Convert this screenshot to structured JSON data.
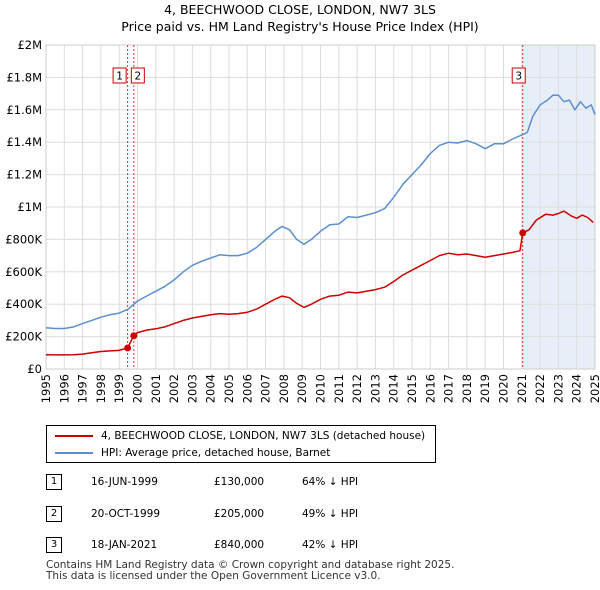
{
  "title": {
    "line1": "4, BEECHWOOD CLOSE, LONDON, NW7 3LS",
    "line2": "Price paid vs. HM Land Registry's House Price Index (HPI)"
  },
  "colors": {
    "property": "#cc0000",
    "hpi": "#5b8fd0",
    "shade": "#e8eef8",
    "grid": "#dddddd",
    "vline": "#cc0000"
  },
  "chart_data": {
    "type": "line",
    "title": "Price paid vs. HM Land Registry's House Price Index (HPI)",
    "xlabel": "",
    "ylabel": "",
    "xlim": [
      1995,
      2025
    ],
    "ylim": [
      0,
      2000000
    ],
    "grid": true,
    "y_ticks": [
      {
        "value": 0,
        "label": "£0"
      },
      {
        "value": 200000,
        "label": "£200K"
      },
      {
        "value": 400000,
        "label": "£400K"
      },
      {
        "value": 600000,
        "label": "£600K"
      },
      {
        "value": 800000,
        "label": "£800K"
      },
      {
        "value": 1000000,
        "label": "£1M"
      },
      {
        "value": 1200000,
        "label": "£1.2M"
      },
      {
        "value": 1400000,
        "label": "£1.4M"
      },
      {
        "value": 1600000,
        "label": "£1.6M"
      },
      {
        "value": 1800000,
        "label": "£1.8M"
      },
      {
        "value": 2000000,
        "label": "£2M"
      }
    ],
    "x_ticks": [
      "1995",
      "1996",
      "1997",
      "1998",
      "1999",
      "2000",
      "2001",
      "2002",
      "2003",
      "2004",
      "2005",
      "2006",
      "2007",
      "2008",
      "2009",
      "2010",
      "2011",
      "2012",
      "2013",
      "2014",
      "2015",
      "2016",
      "2017",
      "2018",
      "2019",
      "2020",
      "2021",
      "2022",
      "2023",
      "2024",
      "2025"
    ],
    "shaded_region": [
      2021.05,
      2025
    ],
    "series": [
      {
        "name": "4, BEECHWOOD CLOSE, LONDON, NW7 3LS (detached house)",
        "color": "#cc0000",
        "points": [
          [
            1995.0,
            88000
          ],
          [
            1995.5,
            87000
          ],
          [
            1996.0,
            87000
          ],
          [
            1996.5,
            88000
          ],
          [
            1997.0,
            92000
          ],
          [
            1997.5,
            100000
          ],
          [
            1998.0,
            108000
          ],
          [
            1998.5,
            112000
          ],
          [
            1999.0,
            115000
          ],
          [
            1999.46,
            130000
          ],
          [
            1999.8,
            205000
          ],
          [
            2000.0,
            225000
          ],
          [
            2000.5,
            240000
          ],
          [
            2001.0,
            248000
          ],
          [
            2001.5,
            260000
          ],
          [
            2002.0,
            280000
          ],
          [
            2002.5,
            300000
          ],
          [
            2003.0,
            315000
          ],
          [
            2003.5,
            325000
          ],
          [
            2004.0,
            335000
          ],
          [
            2004.5,
            342000
          ],
          [
            2005.0,
            338000
          ],
          [
            2005.5,
            342000
          ],
          [
            2006.0,
            350000
          ],
          [
            2006.5,
            370000
          ],
          [
            2007.0,
            400000
          ],
          [
            2007.5,
            430000
          ],
          [
            2007.9,
            450000
          ],
          [
            2008.3,
            440000
          ],
          [
            2008.7,
            405000
          ],
          [
            2009.1,
            380000
          ],
          [
            2009.5,
            400000
          ],
          [
            2010.0,
            430000
          ],
          [
            2010.5,
            450000
          ],
          [
            2011.0,
            455000
          ],
          [
            2011.5,
            475000
          ],
          [
            2012.0,
            470000
          ],
          [
            2012.5,
            480000
          ],
          [
            2013.0,
            490000
          ],
          [
            2013.5,
            505000
          ],
          [
            2014.0,
            540000
          ],
          [
            2014.5,
            580000
          ],
          [
            2015.0,
            610000
          ],
          [
            2015.5,
            640000
          ],
          [
            2016.0,
            670000
          ],
          [
            2016.5,
            700000
          ],
          [
            2017.0,
            715000
          ],
          [
            2017.5,
            705000
          ],
          [
            2018.0,
            710000
          ],
          [
            2018.5,
            700000
          ],
          [
            2019.0,
            690000
          ],
          [
            2019.5,
            700000
          ],
          [
            2020.0,
            710000
          ],
          [
            2020.5,
            720000
          ],
          [
            2020.9,
            730000
          ],
          [
            2021.05,
            840000
          ],
          [
            2021.4,
            860000
          ],
          [
            2021.8,
            920000
          ],
          [
            2022.3,
            955000
          ],
          [
            2022.7,
            950000
          ],
          [
            2023.0,
            960000
          ],
          [
            2023.3,
            975000
          ],
          [
            2023.7,
            945000
          ],
          [
            2024.0,
            930000
          ],
          [
            2024.3,
            950000
          ],
          [
            2024.6,
            935000
          ],
          [
            2024.9,
            905000
          ]
        ]
      },
      {
        "name": "HPI: Average price, detached house, Barnet",
        "color": "#5b8fd0",
        "points": [
          [
            1995.0,
            255000
          ],
          [
            1995.5,
            250000
          ],
          [
            1996.0,
            250000
          ],
          [
            1996.5,
            260000
          ],
          [
            1997.0,
            280000
          ],
          [
            1997.5,
            300000
          ],
          [
            1998.0,
            320000
          ],
          [
            1998.5,
            335000
          ],
          [
            1999.0,
            345000
          ],
          [
            1999.5,
            370000
          ],
          [
            2000.0,
            420000
          ],
          [
            2000.5,
            450000
          ],
          [
            2001.0,
            480000
          ],
          [
            2001.5,
            510000
          ],
          [
            2002.0,
            550000
          ],
          [
            2002.5,
            600000
          ],
          [
            2003.0,
            640000
          ],
          [
            2003.5,
            665000
          ],
          [
            2004.0,
            685000
          ],
          [
            2004.5,
            705000
          ],
          [
            2005.0,
            700000
          ],
          [
            2005.5,
            700000
          ],
          [
            2006.0,
            715000
          ],
          [
            2006.5,
            750000
          ],
          [
            2007.0,
            800000
          ],
          [
            2007.5,
            850000
          ],
          [
            2007.9,
            880000
          ],
          [
            2008.3,
            860000
          ],
          [
            2008.7,
            800000
          ],
          [
            2009.1,
            770000
          ],
          [
            2009.5,
            800000
          ],
          [
            2010.0,
            850000
          ],
          [
            2010.5,
            890000
          ],
          [
            2011.0,
            895000
          ],
          [
            2011.5,
            940000
          ],
          [
            2012.0,
            935000
          ],
          [
            2012.5,
            950000
          ],
          [
            2013.0,
            965000
          ],
          [
            2013.5,
            990000
          ],
          [
            2014.0,
            1060000
          ],
          [
            2014.5,
            1140000
          ],
          [
            2015.0,
            1200000
          ],
          [
            2015.5,
            1260000
          ],
          [
            2016.0,
            1330000
          ],
          [
            2016.5,
            1380000
          ],
          [
            2017.0,
            1400000
          ],
          [
            2017.5,
            1395000
          ],
          [
            2018.0,
            1410000
          ],
          [
            2018.5,
            1390000
          ],
          [
            2019.0,
            1360000
          ],
          [
            2019.5,
            1390000
          ],
          [
            2020.0,
            1390000
          ],
          [
            2020.5,
            1420000
          ],
          [
            2021.0,
            1445000
          ],
          [
            2021.3,
            1460000
          ],
          [
            2021.6,
            1560000
          ],
          [
            2022.0,
            1630000
          ],
          [
            2022.4,
            1660000
          ],
          [
            2022.7,
            1690000
          ],
          [
            2023.0,
            1690000
          ],
          [
            2023.3,
            1650000
          ],
          [
            2023.6,
            1660000
          ],
          [
            2023.9,
            1600000
          ],
          [
            2024.2,
            1650000
          ],
          [
            2024.5,
            1610000
          ],
          [
            2024.8,
            1630000
          ],
          [
            2025.0,
            1570000
          ]
        ]
      }
    ],
    "transactions": [
      {
        "n": "1",
        "x": 1999.46,
        "price": 130000
      },
      {
        "n": "2",
        "x": 1999.8,
        "price": 205000
      },
      {
        "n": "3",
        "x": 2021.05,
        "price": 840000
      }
    ],
    "markers": [
      {
        "label": "1",
        "x": 1999.46
      },
      {
        "label": "2",
        "x": 1999.8
      },
      {
        "label": "3",
        "x": 2021.05
      }
    ]
  },
  "legend": {
    "property_label": "4, BEECHWOOD CLOSE, LONDON, NW7 3LS (detached house)",
    "hpi_label": "HPI: Average price, detached house, Barnet"
  },
  "transactions_table": [
    {
      "num": "1",
      "date": "16-JUN-1999",
      "price": "£130,000",
      "hpi": "64% ↓ HPI"
    },
    {
      "num": "2",
      "date": "20-OCT-1999",
      "price": "£205,000",
      "hpi": "49% ↓ HPI"
    },
    {
      "num": "3",
      "date": "18-JAN-2021",
      "price": "£840,000",
      "hpi": "42% ↓ HPI"
    }
  ],
  "footer": {
    "line1": "Contains HM Land Registry data © Crown copyright and database right 2025.",
    "line2": "This data is licensed under the Open Government Licence v3.0."
  }
}
